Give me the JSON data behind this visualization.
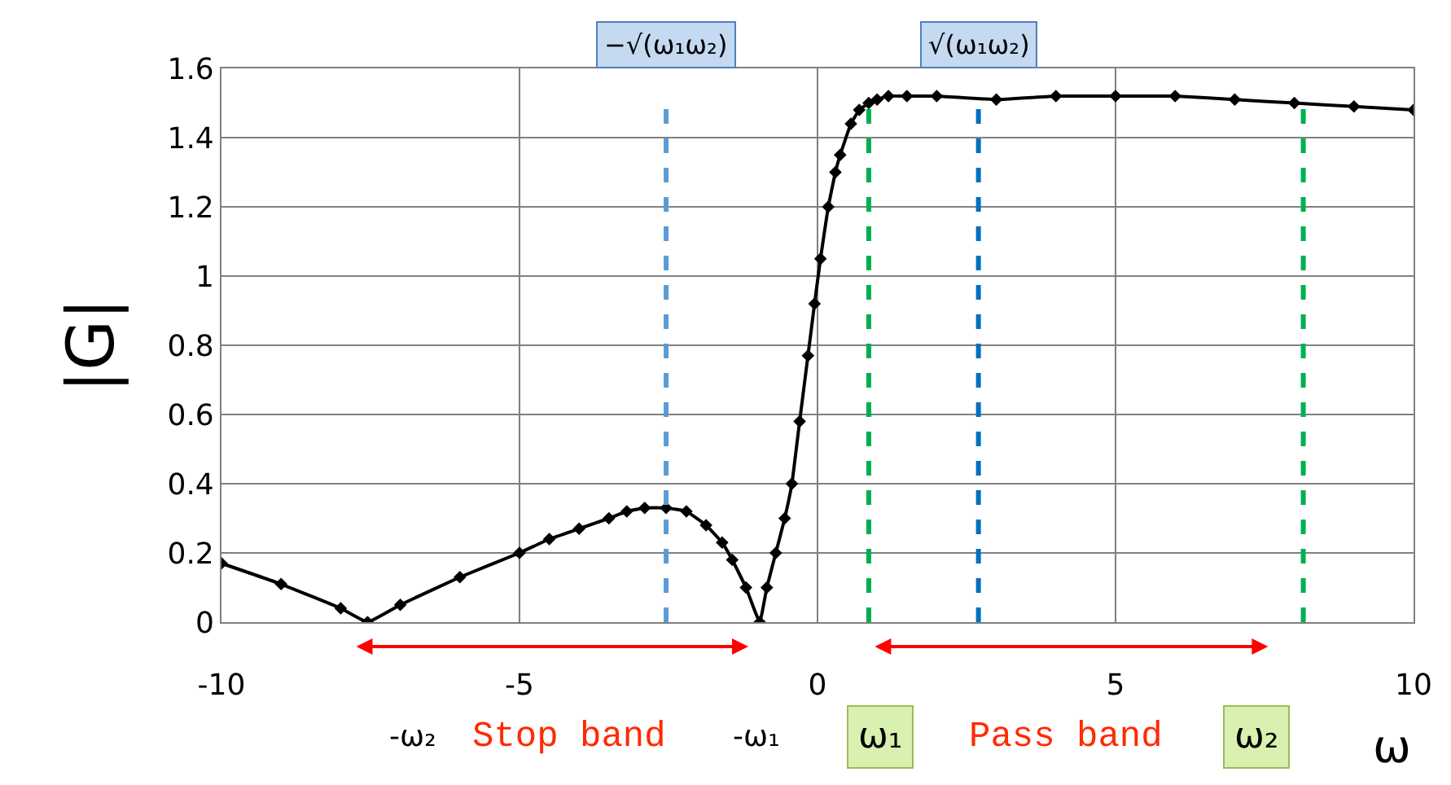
{
  "chart_data": {
    "type": "line",
    "xlabel": "ω",
    "ylabel": "|G|",
    "xlim": [
      -10,
      10
    ],
    "xticks": [
      -10,
      -5,
      0,
      5,
      10
    ],
    "ylim": [
      0,
      1.6
    ],
    "yticks": [
      0,
      0.2,
      0.4,
      0.6,
      0.8,
      1,
      1.2,
      1.4,
      1.6
    ],
    "grid": true,
    "marker": "diamond",
    "line_style": "solid",
    "series": [
      {
        "color": "#000000",
        "x": [
          -10,
          -9,
          -8,
          -7.55,
          -7,
          -6,
          -5,
          -4.5,
          -4,
          -3.5,
          -3.2,
          -2.9,
          -2.54,
          -2.2,
          -1.87,
          -1.6,
          -1.43,
          -1.2,
          -0.97,
          -0.85,
          -0.7,
          -0.55,
          -0.43,
          -0.3,
          -0.16,
          -0.05,
          0.05,
          0.18,
          0.3,
          0.38,
          0.56,
          0.7,
          0.86,
          1.0,
          1.19,
          1.5,
          2,
          3,
          4,
          5,
          6,
          7,
          8,
          9,
          10
        ],
        "values": [
          0.17,
          0.11,
          0.04,
          0,
          0.05,
          0.13,
          0.2,
          0.24,
          0.27,
          0.3,
          0.32,
          0.33,
          0.33,
          0.32,
          0.28,
          0.23,
          0.18,
          0.1,
          0,
          0.1,
          0.2,
          0.3,
          0.4,
          0.58,
          0.77,
          0.92,
          1.05,
          1.2,
          1.3,
          1.35,
          1.44,
          1.48,
          1.5,
          1.51,
          1.52,
          1.52,
          1.52,
          1.51,
          1.52,
          1.52,
          1.52,
          1.51,
          1.5,
          1.49,
          1.48
        ]
      }
    ],
    "ref_lines": [
      {
        "axis": "x",
        "value": -2.54,
        "label": "−√(ω₁ω₂)",
        "color": "#5b9bd5",
        "line_style": "dashed"
      },
      {
        "axis": "x",
        "value": 2.7,
        "label": "√(ω₁ω₂)",
        "color": "#0070c0",
        "line_style": "dashed"
      },
      {
        "axis": "x",
        "value": 0.86,
        "color": "#00b050",
        "line_style": "dashed"
      },
      {
        "axis": "x",
        "value": 8.15,
        "color": "#00b050",
        "line_style": "dashed"
      }
    ],
    "annotations": [
      "-ω₂",
      "Stop band",
      "-ω₁",
      "ω₁",
      "Pass band",
      "ω₂"
    ]
  }
}
